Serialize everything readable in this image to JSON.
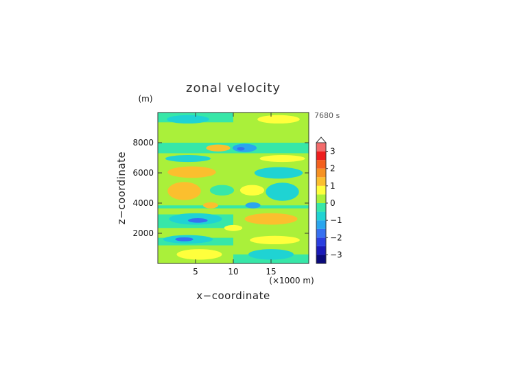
{
  "chart_data": {
    "type": "heatmap",
    "title": "zonal velocity",
    "xlabel": "x−coordinate",
    "ylabel": "z−coordinate",
    "x_unit": "(×1000 m)",
    "y_unit": "(m)",
    "time_label": "7680 s",
    "xlim": [
      0,
      20
    ],
    "ylim": [
      0,
      10000
    ],
    "x_ticks": [
      5,
      10,
      15
    ],
    "y_ticks": [
      2000,
      4000,
      6000,
      8000
    ],
    "x_tick_labels": [
      "5",
      "10",
      "15"
    ],
    "y_tick_labels": [
      "2000",
      "4000",
      "6000",
      "8000"
    ],
    "colorbar_labels": [
      "3",
      "2",
      "1",
      "0",
      "−1",
      "−2",
      "−3"
    ],
    "colorbar_values": [
      3,
      2,
      1,
      0,
      -1,
      -2,
      -3
    ],
    "colorbar_range": [
      -3.5,
      3.5
    ],
    "colorbar_extend": "max",
    "background_value": 0,
    "bands": [
      {
        "z": [
          9350,
          10000
        ],
        "x": [
          0,
          10
        ],
        "value": -0.25
      },
      {
        "z": [
          9350,
          10000
        ],
        "x": [
          10,
          20
        ],
        "value": 0.25
      },
      {
        "z": [
          7300,
          8000
        ],
        "x": [
          0,
          20
        ],
        "value": -0.25
      },
      {
        "z": [
          6100,
          6700
        ],
        "x": [
          0,
          20
        ],
        "value": 0.25
      },
      {
        "z": [
          5000,
          5400
        ],
        "x": [
          0,
          10
        ],
        "value": 0.25
      },
      {
        "z": [
          3650,
          3850
        ],
        "x": [
          0,
          20
        ],
        "value": -0.25
      },
      {
        "z": [
          2350,
          3250
        ],
        "x": [
          0,
          10
        ],
        "value": -0.25
      },
      {
        "z": [
          1200,
          1700
        ],
        "x": [
          0,
          10
        ],
        "value": -0.25
      },
      {
        "z": [
          1200,
          1700
        ],
        "x": [
          10,
          20
        ],
        "value": 0.25
      },
      {
        "z": [
          0,
          600
        ],
        "x": [
          0,
          10
        ],
        "value": 0.25
      },
      {
        "z": [
          0,
          600
        ],
        "x": [
          10,
          20
        ],
        "value": -0.25
      }
    ],
    "cells": [
      {
        "x": 4.0,
        "z": 9550,
        "rx": 2.8,
        "rz": 280,
        "value": -0.7
      },
      {
        "x": 16.0,
        "z": 9550,
        "rx": 2.8,
        "rz": 280,
        "value": 0.7
      },
      {
        "x": 8.0,
        "z": 7650,
        "rx": 1.6,
        "rz": 230,
        "value": 1.2
      },
      {
        "x": 1.5,
        "z": 7650,
        "rx": 1.5,
        "rz": 230,
        "value": -0.5
      },
      {
        "x": 11.5,
        "z": 7650,
        "rx": 1.6,
        "rz": 280,
        "value": -1.2
      },
      {
        "x": 11.0,
        "z": 7600,
        "rx": 0.5,
        "rz": 120,
        "value": -1.7
      },
      {
        "x": 4.0,
        "z": 6950,
        "rx": 3.0,
        "rz": 230,
        "value": -0.7
      },
      {
        "x": 16.5,
        "z": 6950,
        "rx": 3.0,
        "rz": 230,
        "value": 0.7
      },
      {
        "x": 4.5,
        "z": 6050,
        "rx": 3.2,
        "rz": 380,
        "value": 1.1
      },
      {
        "x": 16.0,
        "z": 6000,
        "rx": 3.2,
        "rz": 380,
        "value": -0.8
      },
      {
        "x": 3.5,
        "z": 4800,
        "rx": 2.2,
        "rz": 600,
        "value": 1.1
      },
      {
        "x": 8.5,
        "z": 4850,
        "rx": 1.6,
        "rz": 350,
        "value": -0.5
      },
      {
        "x": 12.5,
        "z": 4850,
        "rx": 1.6,
        "rz": 350,
        "value": 0.5
      },
      {
        "x": 16.5,
        "z": 4750,
        "rx": 2.2,
        "rz": 600,
        "value": -0.9
      },
      {
        "x": 7.0,
        "z": 3850,
        "rx": 1.0,
        "rz": 200,
        "value": 1.1
      },
      {
        "x": 12.6,
        "z": 3850,
        "rx": 1.0,
        "rz": 200,
        "value": -1.1
      },
      {
        "x": 5.0,
        "z": 2950,
        "rx": 3.5,
        "rz": 380,
        "value": -0.9
      },
      {
        "x": 5.3,
        "z": 2850,
        "rx": 1.3,
        "rz": 150,
        "value": -1.6
      },
      {
        "x": 10.0,
        "z": 2350,
        "rx": 1.2,
        "rz": 200,
        "value": 0.6
      },
      {
        "x": 15.0,
        "z": 2950,
        "rx": 3.5,
        "rz": 380,
        "value": 1.0
      },
      {
        "x": 4.0,
        "z": 1600,
        "rx": 3.3,
        "rz": 280,
        "value": -0.9
      },
      {
        "x": 3.5,
        "z": 1600,
        "rx": 1.2,
        "rz": 130,
        "value": -1.6
      },
      {
        "x": 15.5,
        "z": 1550,
        "rx": 3.3,
        "rz": 280,
        "value": 0.9
      },
      {
        "x": 5.5,
        "z": 600,
        "rx": 3.0,
        "rz": 350,
        "value": 0.9
      },
      {
        "x": 15.0,
        "z": 600,
        "rx": 3.0,
        "rz": 350,
        "value": -0.9
      }
    ],
    "grid": false,
    "legend": "colorbar-right"
  }
}
